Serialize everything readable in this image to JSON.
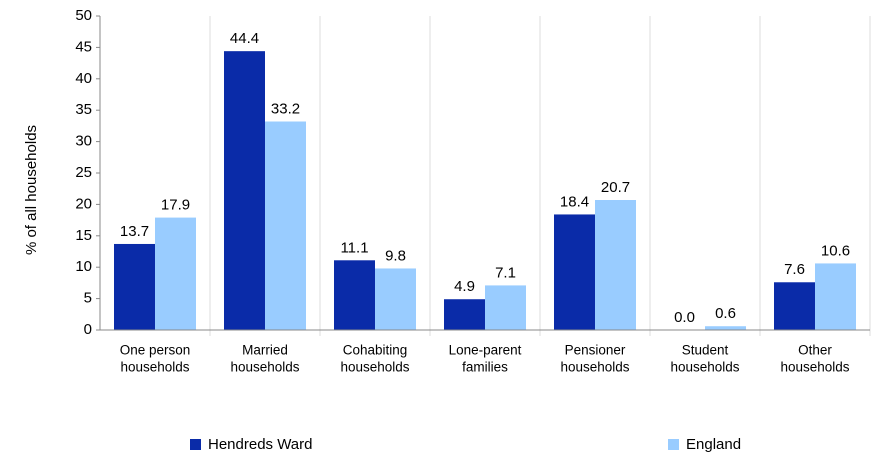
{
  "chart_data": {
    "type": "bar",
    "y_label": "% of all households",
    "categories": [
      [
        "One person",
        "households"
      ],
      [
        "Married",
        "households"
      ],
      [
        "Cohabiting",
        "households"
      ],
      [
        "Lone-parent",
        "families"
      ],
      [
        "Pensioner",
        "households"
      ],
      [
        "Student",
        "households"
      ],
      [
        "Other",
        "households"
      ]
    ],
    "series": [
      {
        "name": "Hendreds Ward",
        "color": "#0a2ba8",
        "values": [
          13.7,
          44.4,
          11.1,
          4.9,
          18.4,
          0,
          7.6
        ],
        "value_labels": [
          "13.7",
          "44.4",
          "11.1",
          "4.9",
          "18.4",
          "0.0",
          "7.6"
        ]
      },
      {
        "name": "England",
        "color": "#99ccff",
        "values": [
          17.9,
          33.2,
          9.8,
          7.1,
          20.7,
          0.6,
          10.6
        ],
        "value_labels": [
          "17.9",
          "33.2",
          "9.8",
          "7.1",
          "20.7",
          "0.6",
          "10.6"
        ]
      }
    ],
    "ylim": [
      0,
      50
    ],
    "yticks": [
      0,
      5,
      10,
      15,
      20,
      25,
      30,
      35,
      40,
      45,
      50
    ]
  }
}
